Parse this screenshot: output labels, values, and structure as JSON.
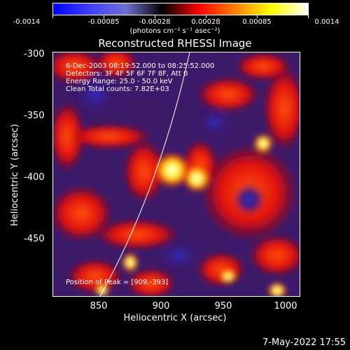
{
  "colors": {
    "colormap": [
      "#0000ff",
      "#4040ff",
      "#7070d0",
      "#000000",
      "#ff0000",
      "#ff8000",
      "#ffff00",
      "#ffffff"
    ]
  },
  "colorbar": {
    "tick_labels": [
      "-0.0014",
      "-0.00085",
      "-0.00028",
      "0.00028",
      "0.00085",
      "0.0014"
    ],
    "units": "(photons cm⁻² s⁻¹ asec⁻²)"
  },
  "title": "Reconstructed RHESSI Image",
  "info": {
    "time_range": "6-Dec-2003 08:19:52.000 to 08:25:52.000",
    "detectors": "Detectors: 3F 4F 5F 6F 7F 8F, Att 0",
    "energy": "Energy Range: 25.0 - 50.0 keV",
    "clean": "Clean     Total counts: 7.82E+03"
  },
  "peak_text": "Position of Peak = [909,-393]",
  "axes": {
    "xlabel": "Heliocentric X (arcsec)",
    "ylabel": "Heliocentric Y (arcsec)",
    "xticks": [
      "850",
      "900",
      "950",
      "1000"
    ],
    "yticks": [
      "-300",
      "-350",
      "-400",
      "-450"
    ]
  },
  "footer": "7-May-2022 17:55"
}
